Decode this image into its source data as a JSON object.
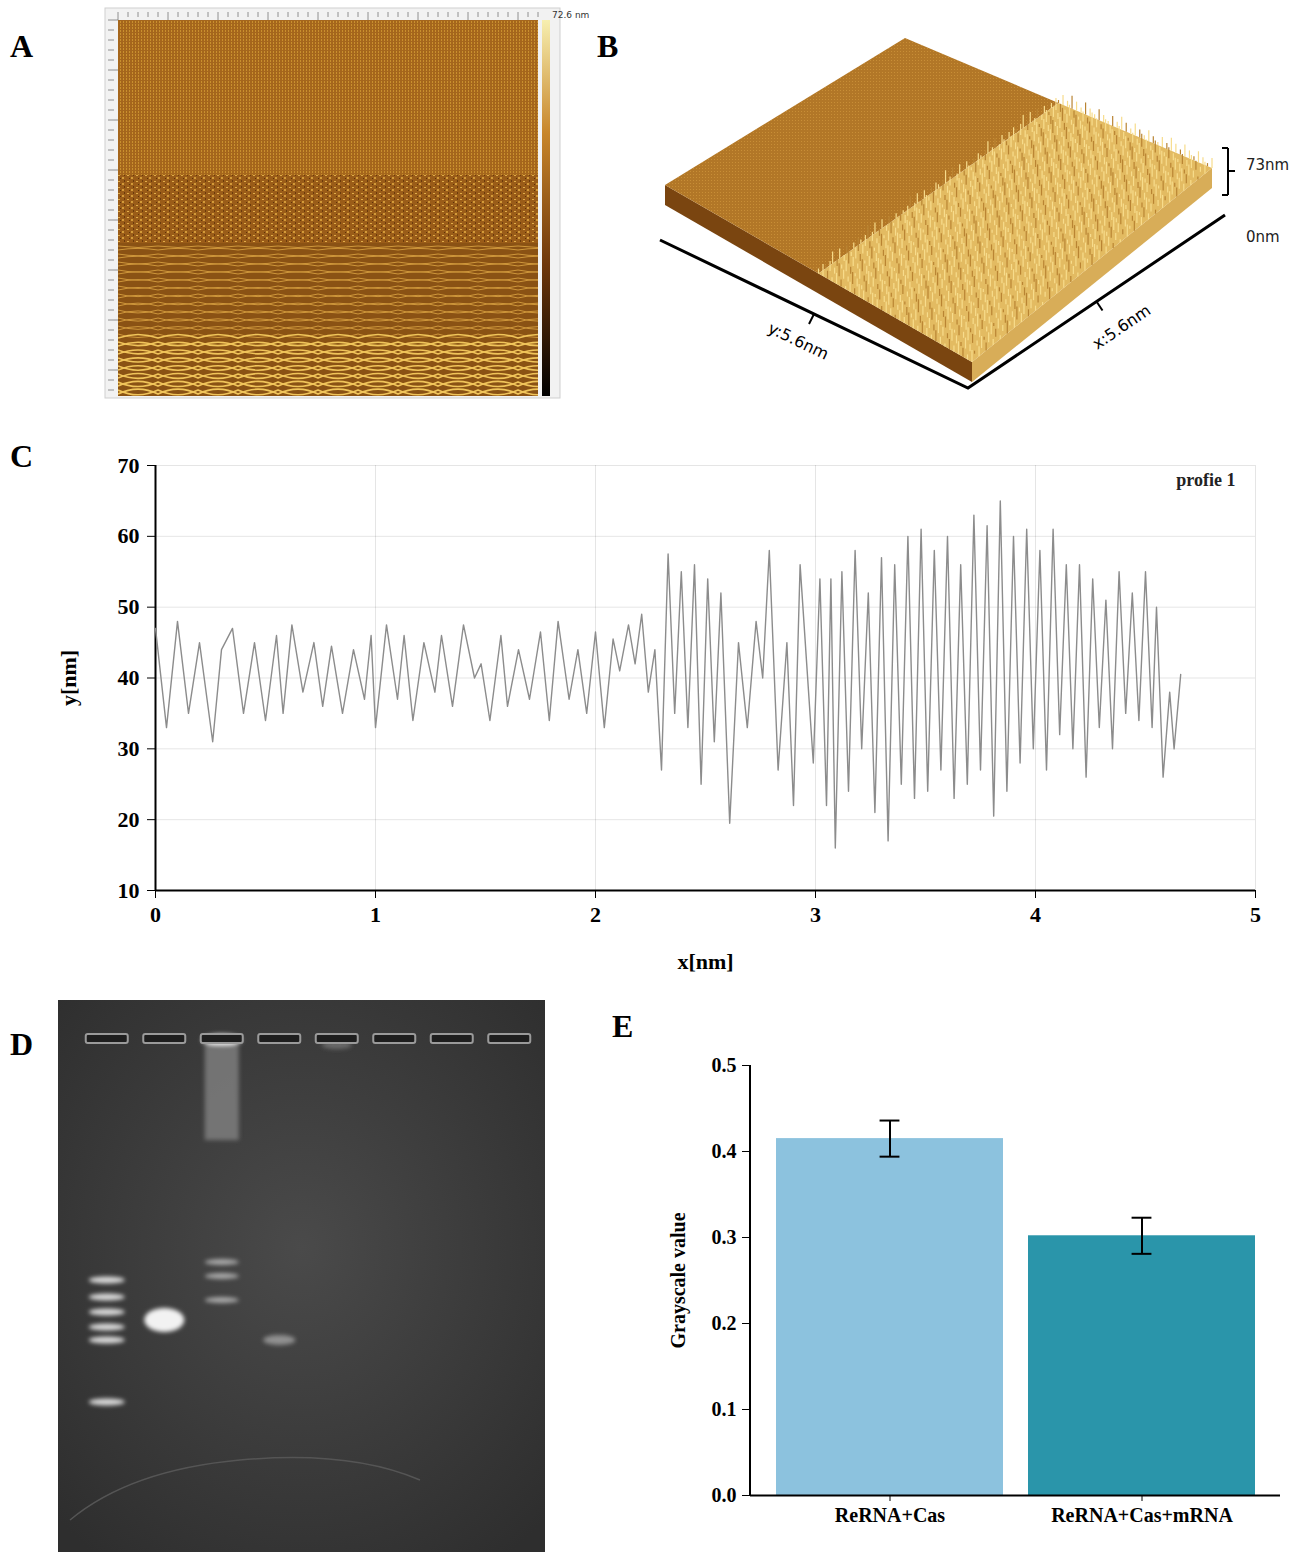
{
  "chart_data": [
    {
      "type": "image",
      "title": "A",
      "colorbar_label": "72.6 nm"
    },
    {
      "type": "surface",
      "title": "B",
      "xlabel": "x:5.6nm",
      "ylabel": "y:5.6nm",
      "zticks": [
        {
          "value": 0,
          "label": "0nm"
        },
        {
          "value": 73,
          "label": "73nm"
        }
      ]
    },
    {
      "type": "line",
      "title": "C",
      "xlabel": "x[nm]",
      "ylabel": "y[nm]",
      "xlim": [
        0,
        5
      ],
      "xticks": [
        0,
        1,
        2,
        3,
        4,
        5
      ],
      "ylim": [
        10,
        70
      ],
      "yticks": [
        10,
        20,
        30,
        40,
        50,
        60,
        70
      ],
      "grid": true,
      "legend": "top-right",
      "x": [
        0,
        0.05,
        0.1,
        0.15,
        0.2,
        0.26,
        0.3,
        0.35,
        0.4,
        0.45,
        0.5,
        0.55,
        0.58,
        0.62,
        0.67,
        0.72,
        0.76,
        0.8,
        0.85,
        0.9,
        0.95,
        0.98,
        1,
        1.05,
        1.1,
        1.13,
        1.17,
        1.22,
        1.27,
        1.3,
        1.35,
        1.4,
        1.45,
        1.48,
        1.52,
        1.57,
        1.6,
        1.65,
        1.7,
        1.75,
        1.79,
        1.83,
        1.88,
        1.92,
        1.96,
        2,
        2.04,
        2.08,
        2.11,
        2.15,
        2.18,
        2.21,
        2.24,
        2.27,
        2.3,
        2.33,
        2.36,
        2.39,
        2.42,
        2.45,
        2.48,
        2.51,
        2.54,
        2.57,
        2.61,
        2.65,
        2.69,
        2.73,
        2.76,
        2.79,
        2.83,
        2.87,
        2.9,
        2.93,
        2.96,
        2.99,
        3.02,
        3.05,
        3.07,
        3.09,
        3.12,
        3.15,
        3.18,
        3.21,
        3.24,
        3.27,
        3.3,
        3.33,
        3.36,
        3.39,
        3.42,
        3.45,
        3.48,
        3.51,
        3.54,
        3.57,
        3.6,
        3.63,
        3.66,
        3.69,
        3.72,
        3.75,
        3.78,
        3.81,
        3.84,
        3.87,
        3.9,
        3.93,
        3.96,
        3.99,
        4.02,
        4.05,
        4.08,
        4.11,
        4.14,
        4.17,
        4.2,
        4.23,
        4.26,
        4.29,
        4.32,
        4.35,
        4.38,
        4.41,
        4.44,
        4.47,
        4.5,
        4.53,
        4.55,
        4.58,
        4.61,
        4.63,
        4.66
      ],
      "series": [
        {
          "name": "profie 1",
          "color": "#8c8c8c",
          "values": [
            47,
            33,
            48,
            35,
            45,
            31,
            44,
            47,
            35,
            45,
            34,
            46,
            35,
            47.5,
            38,
            45,
            36,
            44.5,
            35,
            44,
            37,
            46,
            33,
            47.5,
            37,
            46,
            34,
            45,
            38,
            46,
            36,
            47.5,
            40,
            42,
            34,
            46,
            36,
            44,
            37,
            46.5,
            34,
            48,
            37,
            44,
            35,
            46.5,
            33,
            45.5,
            41,
            47.5,
            42,
            49,
            38,
            44,
            27,
            57.5,
            35,
            55,
            33,
            56,
            25,
            54,
            31,
            52,
            19.5,
            45,
            33,
            48,
            40,
            58,
            27,
            45,
            22,
            56,
            42,
            28,
            54,
            22,
            54,
            16,
            55,
            24,
            58,
            30,
            52,
            21,
            57,
            17,
            56,
            25,
            60,
            23,
            61,
            24,
            58,
            27,
            60,
            23,
            56,
            25,
            63,
            27,
            61.5,
            20.5,
            65,
            24,
            60,
            28,
            61,
            30,
            58,
            27,
            61,
            32,
            56,
            30,
            56,
            26,
            54,
            33,
            51,
            30,
            55,
            35,
            52,
            34,
            55,
            33,
            50,
            26,
            38,
            30,
            40.5
          ]
        }
      ]
    },
    {
      "type": "gel",
      "title": "D",
      "lanes": 8
    },
    {
      "type": "bar",
      "title": "E",
      "ylabel": "Grayscale value",
      "categories": [
        "ReRNA+Cas",
        "ReRNA+Cas+mRNA"
      ],
      "values": [
        0.415,
        0.302
      ],
      "errors": [
        0.021,
        0.021
      ],
      "colors": [
        "#8cc2de",
        "#2a95aa"
      ],
      "ylim": [
        0,
        0.5
      ],
      "yticks": [
        {
          "value": 0,
          "label": "0.0"
        },
        0.1,
        0.2,
        0.3,
        0.4,
        0.5
      ]
    }
  ]
}
